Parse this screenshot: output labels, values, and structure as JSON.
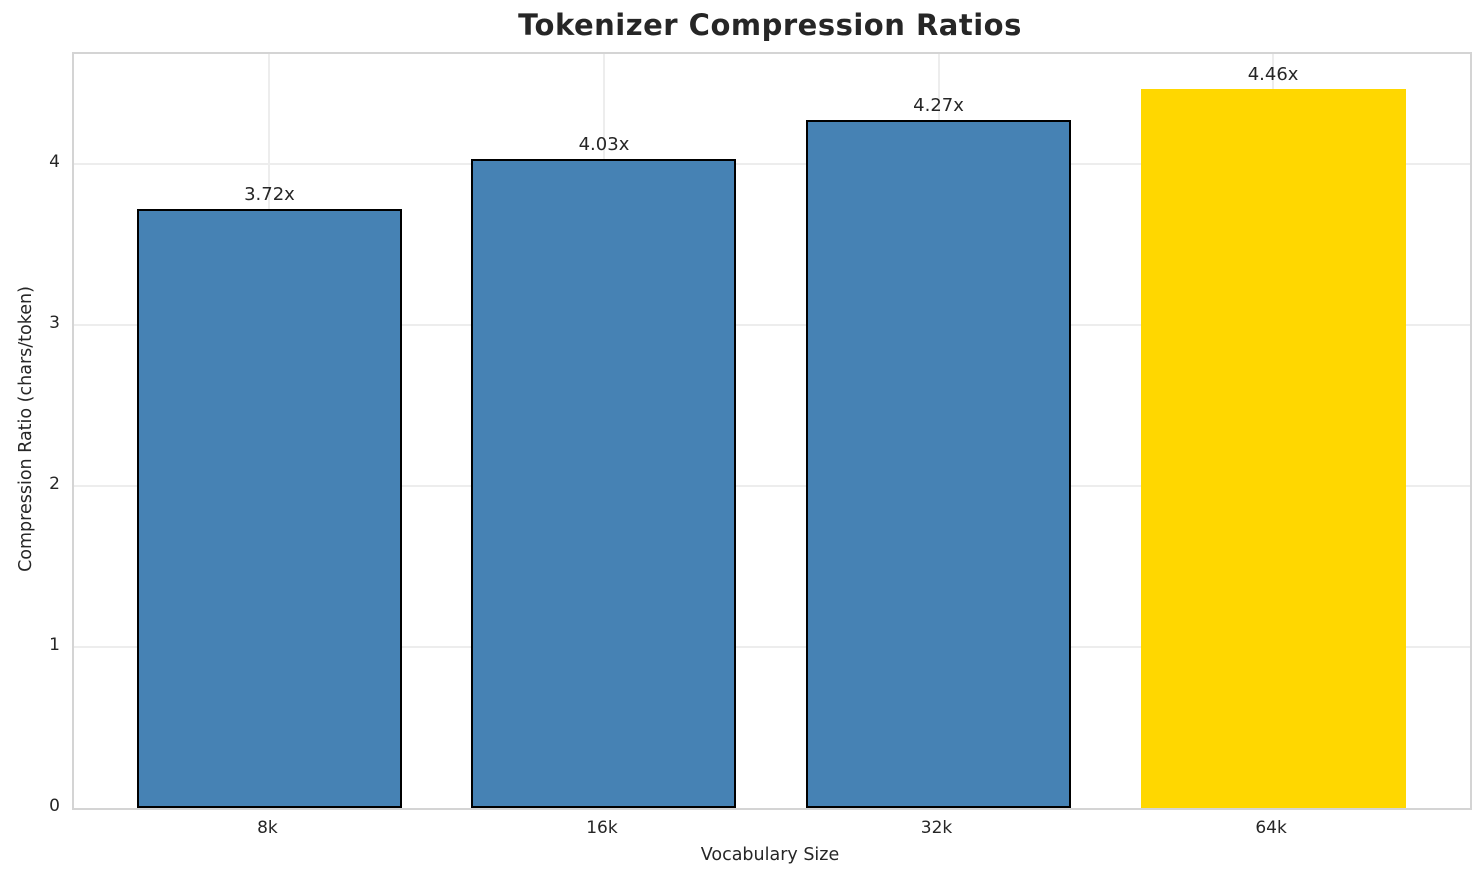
{
  "chart_data": {
    "type": "bar",
    "title": "Tokenizer Compression Ratios",
    "xlabel": "Vocabulary Size",
    "ylabel": "Compression Ratio (chars/token)",
    "categories": [
      "8k",
      "16k",
      "32k",
      "64k"
    ],
    "values": [
      3.72,
      4.03,
      4.27,
      4.46
    ],
    "value_labels": [
      "3.72x",
      "4.03x",
      "4.27x",
      "4.46x"
    ],
    "yticks": [
      0,
      1,
      2,
      3,
      4
    ],
    "ylim": [
      0,
      4.68
    ],
    "grid": "both",
    "legend": "none",
    "bar_colors": [
      "#4682B4",
      "#4682B4",
      "#4682B4",
      "#FFD700"
    ],
    "bar_edge_colors": [
      "#000000",
      "#000000",
      "#000000",
      "none"
    ],
    "highlight_index": 3
  },
  "colors": {
    "bar_blue": "#4682B4",
    "bar_gold": "#FFD700",
    "bar_edge": "#000000",
    "text": "#262626",
    "gridline": "#ededed",
    "spine": "#d4d4d4",
    "background": "#ffffff"
  }
}
